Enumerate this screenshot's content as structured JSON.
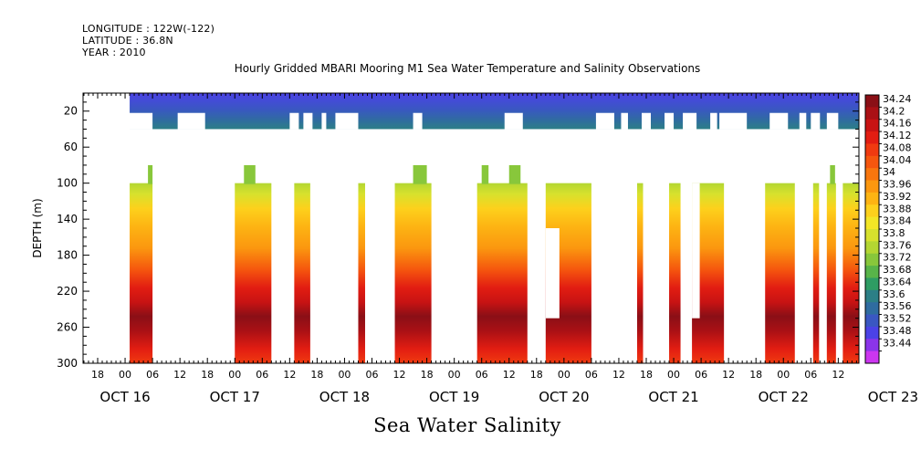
{
  "header": {
    "longitude": "LONGITUDE : 122W(-122)",
    "latitude": "LATITUDE : 36.8N",
    "year": "YEAR : 2010"
  },
  "chart_data": {
    "type": "heatmap",
    "title": "Hourly Gridded MBARI Mooring M1 Sea Water Temperature and Salinity Observations",
    "xlabel": "Sea Water Salinity",
    "ylabel": "DEPTH (m)",
    "x_range_hours": [
      0,
      168
    ],
    "x_start": "OCT 16 18:00",
    "hour_ticks": [
      "18",
      "00",
      "06",
      "12",
      "18",
      "00",
      "06",
      "12",
      "18",
      "00",
      "06",
      "12",
      "18",
      "00",
      "06",
      "12",
      "18",
      "00",
      "06",
      "12",
      "18",
      "00",
      "06",
      "12",
      "18",
      "00",
      "06",
      "12"
    ],
    "day_labels": [
      "OCT 16",
      "OCT 17",
      "OCT 18",
      "OCT 19",
      "OCT 20",
      "OCT 21",
      "OCT 22",
      "OCT 23"
    ],
    "ylim": [
      300,
      0
    ],
    "y_ticks": [
      20,
      60,
      100,
      140,
      180,
      220,
      260,
      300
    ],
    "colorbar": {
      "levels": [
        "34.24",
        "34.2",
        "34.16",
        "34.12",
        "34.08",
        "34.04",
        "34",
        "33.96",
        "33.92",
        "33.88",
        "33.84",
        "33.8",
        "33.76",
        "33.72",
        "33.68",
        "33.64",
        "33.6",
        "33.56",
        "33.52",
        "33.48",
        "33.44"
      ],
      "colors": [
        "#8a0f16",
        "#aa1015",
        "#c81313",
        "#e21d12",
        "#f03a10",
        "#f5560e",
        "#f8760e",
        "#fb970f",
        "#fdb413",
        "#fdd11c",
        "#f3e626",
        "#d7e12d",
        "#b4d632",
        "#88c73b",
        "#58b449",
        "#2e9c63",
        "#2c7f86",
        "#2f6ca0",
        "#3a57c2",
        "#4b42e6",
        "#8b34ea",
        "#cc36f0"
      ]
    },
    "surface_gaps_hours": [
      [
        6,
        12
      ],
      [
        17.5,
        23.5
      ],
      [
        42,
        44
      ],
      [
        45,
        47
      ],
      [
        49,
        50
      ],
      [
        52,
        57
      ],
      [
        69,
        71
      ],
      [
        89,
        93
      ],
      [
        109,
        113
      ],
      [
        114.5,
        116
      ],
      [
        119,
        121
      ],
      [
        124,
        126
      ],
      [
        128,
        131
      ],
      [
        134,
        135.5
      ],
      [
        136,
        142
      ],
      [
        147,
        151
      ],
      [
        153.5,
        155
      ],
      [
        156,
        158
      ],
      [
        159.5,
        162
      ]
    ],
    "deep_columns": [
      {
        "start": 7,
        "end": 12,
        "top_depth": 100,
        "bump": [
          11,
          12,
          80
        ]
      },
      {
        "start": 30,
        "end": 38,
        "top_depth": 100,
        "bump": [
          32,
          34.5,
          80
        ]
      },
      {
        "start": 43,
        "end": 46.5,
        "top_depth": 80
      },
      {
        "start": 57,
        "end": 58.5,
        "top_depth": 100
      },
      {
        "start": 65,
        "end": 73,
        "top_depth": 100,
        "bump": [
          69,
          72,
          80
        ]
      },
      {
        "start": 83,
        "end": 94,
        "top_depth": 100,
        "bump": [
          84,
          85.5,
          80
        ],
        "bump2": [
          90,
          92.5,
          80
        ]
      },
      {
        "start": 98,
        "end": 108,
        "top_depth": 100,
        "hole": [
          98,
          101,
          150,
          250
        ]
      },
      {
        "start": 118,
        "end": 119.3,
        "top_depth": 100
      },
      {
        "start": 125,
        "end": 127.5,
        "top_depth": 100
      },
      {
        "start": 130,
        "end": 137,
        "top_depth": 100,
        "hole": [
          130,
          131.7,
          100,
          250
        ]
      },
      {
        "start": 146,
        "end": 152.5,
        "top_depth": 100
      },
      {
        "start": 156.5,
        "end": 157.8,
        "top_depth": 100
      },
      {
        "start": 159.5,
        "end": 161.5,
        "top_depth": 100,
        "bump": [
          160.2,
          161.3,
          80
        ]
      },
      {
        "start": 163,
        "end": 174,
        "top_depth": 100
      }
    ]
  }
}
